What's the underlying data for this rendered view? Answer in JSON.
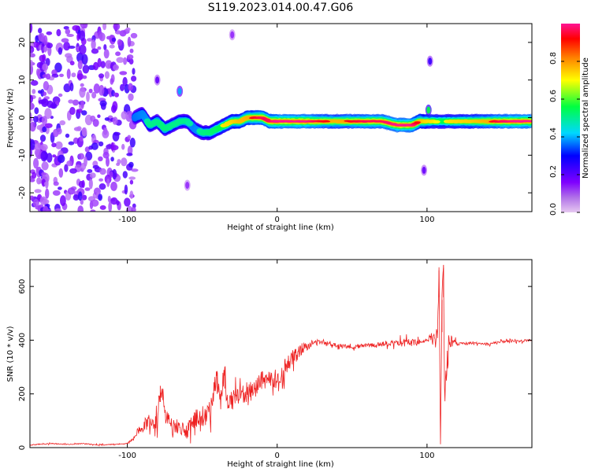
{
  "title": "S119.2023.014.00.47.G06",
  "chart_data": [
    {
      "type": "heatmap",
      "xlabel": "Height of straight line (km)",
      "ylabel": "Frequency (Hz)",
      "xlim": [
        -165,
        170
      ],
      "ylim": [
        -25,
        25
      ],
      "xticks": [
        -100,
        0,
        100
      ],
      "yticks": [
        -20,
        -10,
        0,
        10,
        20
      ],
      "colorbar": {
        "label": "Normalized spectral amplitude",
        "range": [
          0,
          1
        ],
        "ticks": [
          "0.0",
          "0.2",
          "0.4",
          "0.6",
          "0.8"
        ],
        "tick_values": [
          0,
          0.2,
          0.4,
          0.6,
          0.8
        ],
        "colors": [
          "#e6c8f0",
          "#7f00ff",
          "#0000ff",
          "#00d8ff",
          "#00ff40",
          "#ffff00",
          "#ff8000",
          "#ff0000",
          "#ff1493"
        ]
      },
      "ridge": {
        "x": [
          -95,
          -90,
          -85,
          -80,
          -75,
          -70,
          -65,
          -60,
          -55,
          -50,
          -45,
          -40,
          -35,
          -30,
          -25,
          -20,
          -15,
          -10,
          -5,
          0,
          10,
          20,
          30,
          40,
          50,
          60,
          70,
          80,
          90,
          95,
          100,
          110,
          120,
          130,
          140,
          150,
          160,
          170
        ],
        "y": [
          0,
          1,
          -2,
          -1,
          -3,
          -2,
          -1,
          -1,
          -3,
          -4,
          -4,
          -3,
          -2,
          -1,
          -1,
          0,
          0,
          0,
          -1,
          -1,
          -1,
          -1,
          -1,
          -1,
          -1,
          -1,
          -1,
          -2,
          -2,
          -1,
          -1,
          -1,
          -1,
          -1,
          -1,
          -1,
          -1,
          -1
        ],
        "intensity": [
          0.35,
          0.4,
          0.45,
          0.45,
          0.5,
          0.45,
          0.45,
          0.45,
          0.4,
          0.45,
          0.5,
          0.55,
          0.65,
          0.7,
          0.8,
          0.85,
          0.9,
          0.95,
          0.95,
          1,
          1,
          1,
          0.9,
          0.85,
          0.9,
          0.95,
          0.95,
          1,
          1,
          0.85,
          0.7,
          0.6,
          0.7,
          0.75,
          0.85,
          0.95,
          1,
          1
        ]
      },
      "noise_region_x": [
        -165,
        -95
      ],
      "features": [
        {
          "x": -65,
          "y": 7,
          "intensity": 0.35
        },
        {
          "x": 101,
          "y": 2,
          "intensity": 0.5
        },
        {
          "x": 102,
          "y": 15,
          "intensity": 0.2
        },
        {
          "x": 98,
          "y": -14,
          "intensity": 0.15
        },
        {
          "x": -80,
          "y": 10,
          "intensity": 0.15
        },
        {
          "x": -60,
          "y": -18,
          "intensity": 0.1
        },
        {
          "x": -30,
          "y": 22,
          "intensity": 0.1
        }
      ]
    },
    {
      "type": "line",
      "xlabel": "Height of straight line (km)",
      "ylabel": "SNR (10 * v/v)",
      "xlim": [
        -165,
        170
      ],
      "ylim": [
        0,
        700
      ],
      "xticks": [
        -100,
        0,
        100
      ],
      "yticks": [
        0,
        200,
        400,
        600
      ],
      "color": "#ee2222",
      "series": {
        "x": [
          -165,
          -150,
          -140,
          -130,
          -120,
          -110,
          -100,
          -95,
          -90,
          -85,
          -80,
          -78,
          -75,
          -70,
          -65,
          -60,
          -55,
          -50,
          -45,
          -40,
          -38,
          -35,
          -33,
          -30,
          -25,
          -20,
          -15,
          -10,
          -5,
          0,
          5,
          10,
          15,
          20,
          25,
          30,
          40,
          50,
          60,
          70,
          80,
          90,
          95,
          100,
          102,
          105,
          107,
          108,
          109,
          110,
          111,
          112,
          115,
          120,
          130,
          140,
          150,
          160,
          170
        ],
        "y": [
          10,
          15,
          12,
          15,
          10,
          12,
          15,
          40,
          80,
          100,
          90,
          230,
          120,
          80,
          70,
          60,
          110,
          120,
          130,
          280,
          170,
          300,
          130,
          180,
          200,
          210,
          220,
          250,
          250,
          260,
          300,
          330,
          360,
          380,
          390,
          395,
          380,
          375,
          380,
          385,
          390,
          390,
          395,
          395,
          410,
          400,
          390,
          660,
          20,
          550,
          680,
          200,
          400,
          385,
          390,
          385,
          395,
          395,
          400
        ],
        "jitter": [
          2,
          3,
          3,
          3,
          3,
          3,
          4,
          20,
          40,
          50,
          60,
          60,
          55,
          50,
          45,
          45,
          60,
          70,
          70,
          80,
          80,
          80,
          75,
          70,
          70,
          60,
          60,
          60,
          60,
          60,
          60,
          50,
          40,
          30,
          20,
          15,
          12,
          12,
          12,
          14,
          20,
          25,
          20,
          15,
          30,
          40,
          60,
          100,
          100,
          120,
          120,
          90,
          50,
          10,
          8,
          8,
          8,
          8,
          8
        ]
      }
    }
  ]
}
